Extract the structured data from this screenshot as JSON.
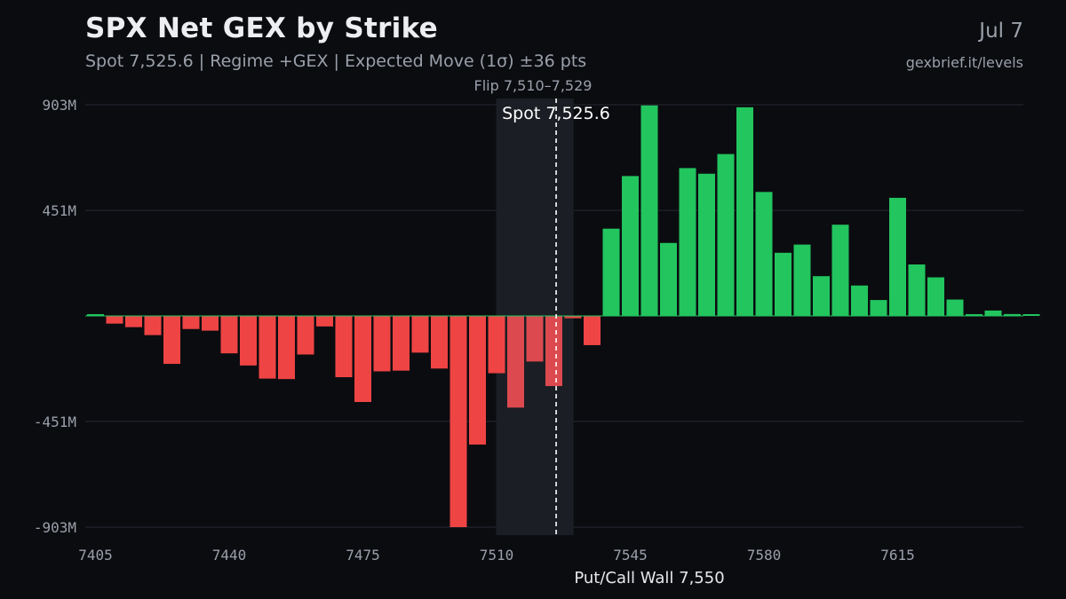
{
  "header": {
    "title": "SPX Net GEX by Strike",
    "subtitle": "Spot 7,525.6 | Regime +GEX | Expected Move (1σ) ±36 pts",
    "date": "Jul 7",
    "source": "gexbrief.it/levels"
  },
  "colors": {
    "background": "#0b0c10",
    "positive": "#22c55e",
    "negative": "#ef4444",
    "negative_in_flip_zone": "#dc4a4f",
    "flip_zone": "#1b1e24",
    "grid": "#262a32"
  },
  "chart_data": {
    "type": "bar",
    "title": "SPX Net GEX by Strike",
    "xlabel": "",
    "ylabel": "",
    "x_ticks": [
      "7405",
      "7440",
      "7475",
      "7510",
      "7545",
      "7580",
      "7615"
    ],
    "y_ticks": [
      "903M",
      "451M",
      "-451M",
      "-903M"
    ],
    "y_tick_values": [
      903,
      451,
      -451,
      -903
    ],
    "ylim": [
      -930,
      903
    ],
    "units": "M",
    "grid": true,
    "strike_step": 5,
    "strikes": [
      7405,
      7410,
      7415,
      7420,
      7425,
      7430,
      7435,
      7440,
      7445,
      7450,
      7455,
      7460,
      7465,
      7470,
      7475,
      7480,
      7485,
      7490,
      7495,
      7500,
      7505,
      7510,
      7515,
      7520,
      7525,
      7530,
      7535,
      7540,
      7545,
      7550,
      7555,
      7560,
      7565,
      7570,
      7575,
      7580,
      7585,
      7590,
      7595,
      7600,
      7605,
      7610,
      7615,
      7620,
      7625,
      7630,
      7635,
      7640,
      7645,
      7650
    ],
    "values": [
      3,
      -33,
      -48,
      -82,
      -205,
      -56,
      -63,
      -160,
      -212,
      -268,
      -270,
      -165,
      -45,
      -262,
      -368,
      -237,
      -234,
      -157,
      -225,
      -903,
      -550,
      -245,
      -392,
      -195,
      -300,
      -10,
      -125,
      373,
      598,
      900,
      312,
      632,
      608,
      692,
      892,
      530,
      270,
      305,
      170,
      390,
      130,
      68,
      505,
      220,
      165,
      70,
      3,
      23,
      8,
      0
    ],
    "annotations": {
      "flip_label": "Flip 7,510–7,529",
      "flip_range": [
        7510,
        7529
      ],
      "spot_label": "Spot 7,525.6",
      "spot": 7525.6,
      "wall_label": "Put/Call Wall 7,550",
      "wall": 7550
    }
  }
}
